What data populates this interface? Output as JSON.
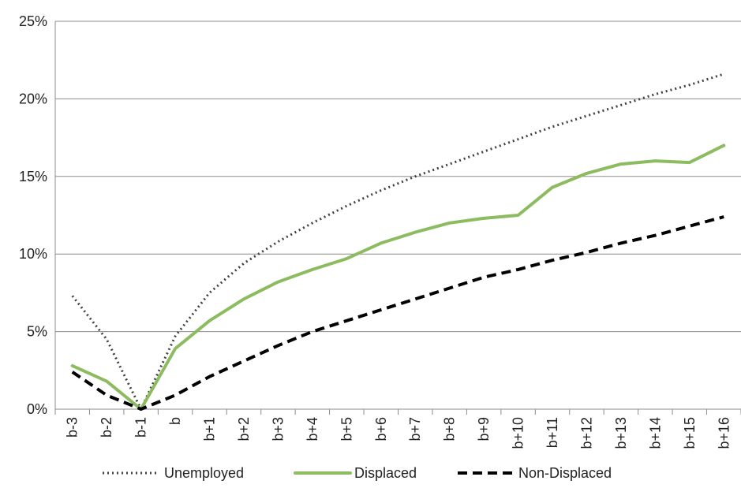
{
  "chart_data": {
    "type": "line",
    "title": "",
    "xlabel": "",
    "ylabel": "",
    "categories": [
      "b-3",
      "b-2",
      "b-1",
      "b",
      "b+1",
      "b+2",
      "b+3",
      "b+4",
      "b+5",
      "b+6",
      "b+7",
      "b+8",
      "b+9",
      "b+10",
      "b+11",
      "b+12",
      "b+13",
      "b+14",
      "b+15",
      "b+16"
    ],
    "y_ticks": [
      "0%",
      "5%",
      "10%",
      "15%",
      "20%",
      "25%"
    ],
    "ylim": [
      0,
      25
    ],
    "y_unit": "%",
    "grid": true,
    "legend_position": "bottom",
    "series": [
      {
        "name": "Unemployed",
        "style": "dotted",
        "color": "#404040",
        "values": [
          7.3,
          4.5,
          0.0,
          4.7,
          7.5,
          9.4,
          10.8,
          12.0,
          13.1,
          14.1,
          15.0,
          15.8,
          16.6,
          17.4,
          18.2,
          18.9,
          19.6,
          20.3,
          20.9,
          21.6
        ]
      },
      {
        "name": "Displaced",
        "style": "solid",
        "color": "#8DBB5F",
        "values": [
          2.8,
          1.8,
          0.0,
          3.9,
          5.7,
          7.1,
          8.2,
          9.0,
          9.7,
          10.7,
          11.4,
          12.0,
          12.3,
          12.5,
          14.3,
          15.2,
          15.8,
          16.0,
          15.9,
          17.0
        ]
      },
      {
        "name": "Non-Displaced",
        "style": "dashed",
        "color": "#000000",
        "values": [
          2.4,
          0.9,
          0.0,
          0.9,
          2.1,
          3.1,
          4.1,
          5.0,
          5.7,
          6.4,
          7.1,
          7.8,
          8.5,
          9.0,
          9.6,
          10.1,
          10.7,
          11.2,
          11.8,
          12.4
        ]
      }
    ]
  }
}
